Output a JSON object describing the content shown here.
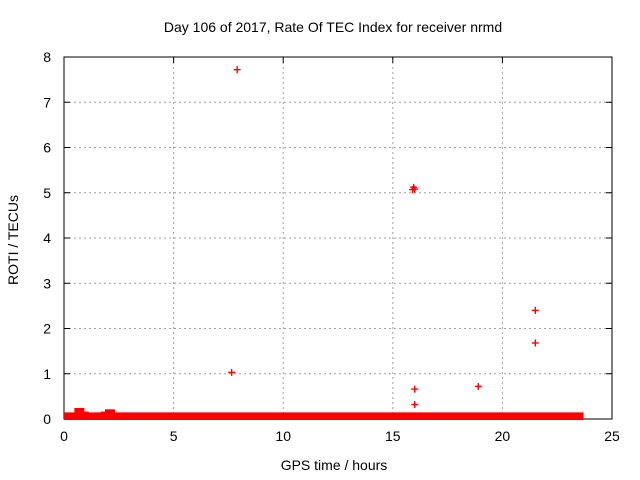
{
  "chart_data": {
    "type": "scatter",
    "title": "Day 106 of 2017, Rate Of TEC Index for receiver nrmd",
    "xlabel": "GPS time / hours",
    "ylabel": "ROTI / TECUs",
    "xlim": [
      0,
      25
    ],
    "ylim": [
      0,
      8
    ],
    "xticks": [
      "0",
      "5",
      "10",
      "15",
      "20",
      "25"
    ],
    "yticks": [
      "0",
      "1",
      "2",
      "3",
      "4",
      "5",
      "6",
      "7",
      "8"
    ],
    "grid": true,
    "marker": "+",
    "color": "#ff0000",
    "series": [
      {
        "points": [
          [
            7.9,
            7.72
          ],
          [
            15.95,
            5.12
          ],
          [
            16.0,
            5.08
          ],
          [
            15.9,
            5.07
          ],
          [
            21.5,
            2.4
          ],
          [
            21.5,
            1.68
          ],
          [
            7.65,
            1.03
          ],
          [
            16.0,
            0.66
          ],
          [
            18.9,
            0.72
          ],
          [
            16.0,
            0.32
          ]
        ]
      }
    ],
    "baseline_band": {
      "x_range": [
        0,
        23.7
      ],
      "y_range": [
        0,
        0.08
      ],
      "bumps": [
        [
          0.7,
          0.2
        ],
        [
          2.1,
          0.17
        ],
        [
          0.9,
          0.12
        ],
        [
          1.9,
          0.12
        ]
      ]
    }
  }
}
